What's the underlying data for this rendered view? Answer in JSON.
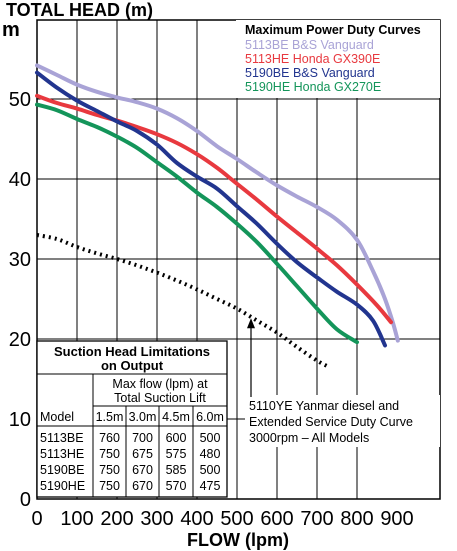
{
  "chart_data": {
    "type": "line",
    "title": "TOTAL HEAD (m)",
    "ylabel_unit": "m",
    "xlabel": "FLOW (lpm)",
    "xlim": [
      0,
      900
    ],
    "ylim": [
      0,
      55
    ],
    "x_ticks": [
      "0",
      "100",
      "200",
      "300",
      "400",
      "500",
      "600",
      "700",
      "800",
      "900"
    ],
    "y_ticks": [
      "0",
      "10",
      "20",
      "30",
      "40",
      "50"
    ],
    "grid": true,
    "legend": {
      "title": "Maximum Power Duty Curves",
      "placement": "top-right"
    },
    "series": [
      {
        "name": "5113BE B&S Vanguard",
        "color": "#a9a3d6",
        "style": "solid",
        "points": [
          [
            0,
            54.2
          ],
          [
            50,
            53
          ],
          [
            100,
            51.8
          ],
          [
            150,
            50.9
          ],
          [
            200,
            50.2
          ],
          [
            250,
            49.6
          ],
          [
            300,
            48.8
          ],
          [
            350,
            47.6
          ],
          [
            400,
            46
          ],
          [
            450,
            44.1
          ],
          [
            500,
            42.5
          ],
          [
            550,
            40.8
          ],
          [
            600,
            39.2
          ],
          [
            650,
            37.8
          ],
          [
            700,
            36.5
          ],
          [
            750,
            34.9
          ],
          [
            800,
            32.4
          ],
          [
            840,
            28.5
          ],
          [
            870,
            25
          ],
          [
            890,
            22
          ],
          [
            902,
            19.8
          ]
        ]
      },
      {
        "name": "5113HE Honda GX390E",
        "color": "#e8393f",
        "style": "solid",
        "points": [
          [
            0,
            50.4
          ],
          [
            50,
            49.5
          ],
          [
            100,
            48.8
          ],
          [
            150,
            48
          ],
          [
            200,
            47.3
          ],
          [
            250,
            46.5
          ],
          [
            300,
            45.6
          ],
          [
            350,
            44.5
          ],
          [
            400,
            43.1
          ],
          [
            450,
            41.4
          ],
          [
            500,
            39.4
          ],
          [
            550,
            37.4
          ],
          [
            600,
            35.3
          ],
          [
            650,
            33.3
          ],
          [
            700,
            31.3
          ],
          [
            750,
            29.2
          ],
          [
            800,
            26.8
          ],
          [
            850,
            24.2
          ],
          [
            885,
            22.1
          ]
        ]
      },
      {
        "name": "5190BE B&S Vanguard",
        "color": "#22358f",
        "style": "solid",
        "points": [
          [
            0,
            53.3
          ],
          [
            50,
            51.4
          ],
          [
            100,
            49.8
          ],
          [
            150,
            48.5
          ],
          [
            200,
            47.2
          ],
          [
            250,
            46
          ],
          [
            300,
            44.3
          ],
          [
            350,
            42
          ],
          [
            400,
            40.3
          ],
          [
            450,
            38.8
          ],
          [
            500,
            36.6
          ],
          [
            550,
            34.4
          ],
          [
            600,
            31.9
          ],
          [
            650,
            29.6
          ],
          [
            700,
            27.7
          ],
          [
            750,
            25.9
          ],
          [
            800,
            24.3
          ],
          [
            840,
            22.3
          ],
          [
            870,
            19.2
          ]
        ]
      },
      {
        "name": "5190HE Honda GX270E",
        "color": "#14955a",
        "style": "solid",
        "points": [
          [
            0,
            49.3
          ],
          [
            50,
            48.6
          ],
          [
            100,
            47.5
          ],
          [
            150,
            46.5
          ],
          [
            200,
            45.3
          ],
          [
            250,
            43.9
          ],
          [
            300,
            42.1
          ],
          [
            350,
            40.3
          ],
          [
            400,
            38.3
          ],
          [
            450,
            36.5
          ],
          [
            500,
            34.4
          ],
          [
            550,
            32.1
          ],
          [
            600,
            29.4
          ],
          [
            650,
            26.6
          ],
          [
            700,
            23.8
          ],
          [
            750,
            21.2
          ],
          [
            800,
            19.6
          ]
        ]
      },
      {
        "name": "5110YE Yanmar diesel and Extended Service Duty Curve",
        "color": "#000000",
        "style": "dotted",
        "points": [
          [
            0,
            33
          ],
          [
            50,
            32.5
          ],
          [
            100,
            31.5
          ],
          [
            150,
            30.7
          ],
          [
            200,
            30
          ],
          [
            250,
            29.2
          ],
          [
            300,
            28.3
          ],
          [
            350,
            27.3
          ],
          [
            400,
            26.2
          ],
          [
            450,
            25
          ],
          [
            500,
            23.8
          ],
          [
            550,
            22.3
          ],
          [
            600,
            20.8
          ],
          [
            650,
            19
          ],
          [
            700,
            17.3
          ],
          [
            730,
            16.5
          ]
        ]
      }
    ],
    "annotations": [
      {
        "lines": [
          "5110YE Yanmar diesel and",
          "Extended Service Duty Curve",
          "3000rpm – All Models"
        ],
        "arrow_to": [
          540,
          23.6
        ]
      }
    ]
  },
  "suction_table": {
    "title_line1": "Suction Head Limitations",
    "title_line2": "on Output",
    "header_max1": "Max flow (lpm) at",
    "header_max2": "Total Suction Lift",
    "model_header": "Model",
    "lifts": [
      "1.5m",
      "3.0m",
      "4.5m",
      "6.0m"
    ],
    "rows": [
      {
        "model": "5113BE",
        "values": [
          "760",
          "700",
          "600",
          "500"
        ]
      },
      {
        "model": "5113HE",
        "values": [
          "750",
          "675",
          "575",
          "480"
        ]
      },
      {
        "model": "5190BE",
        "values": [
          "750",
          "670",
          "585",
          "500"
        ]
      },
      {
        "model": "5190HE",
        "values": [
          "750",
          "670",
          "570",
          "475"
        ]
      }
    ]
  }
}
